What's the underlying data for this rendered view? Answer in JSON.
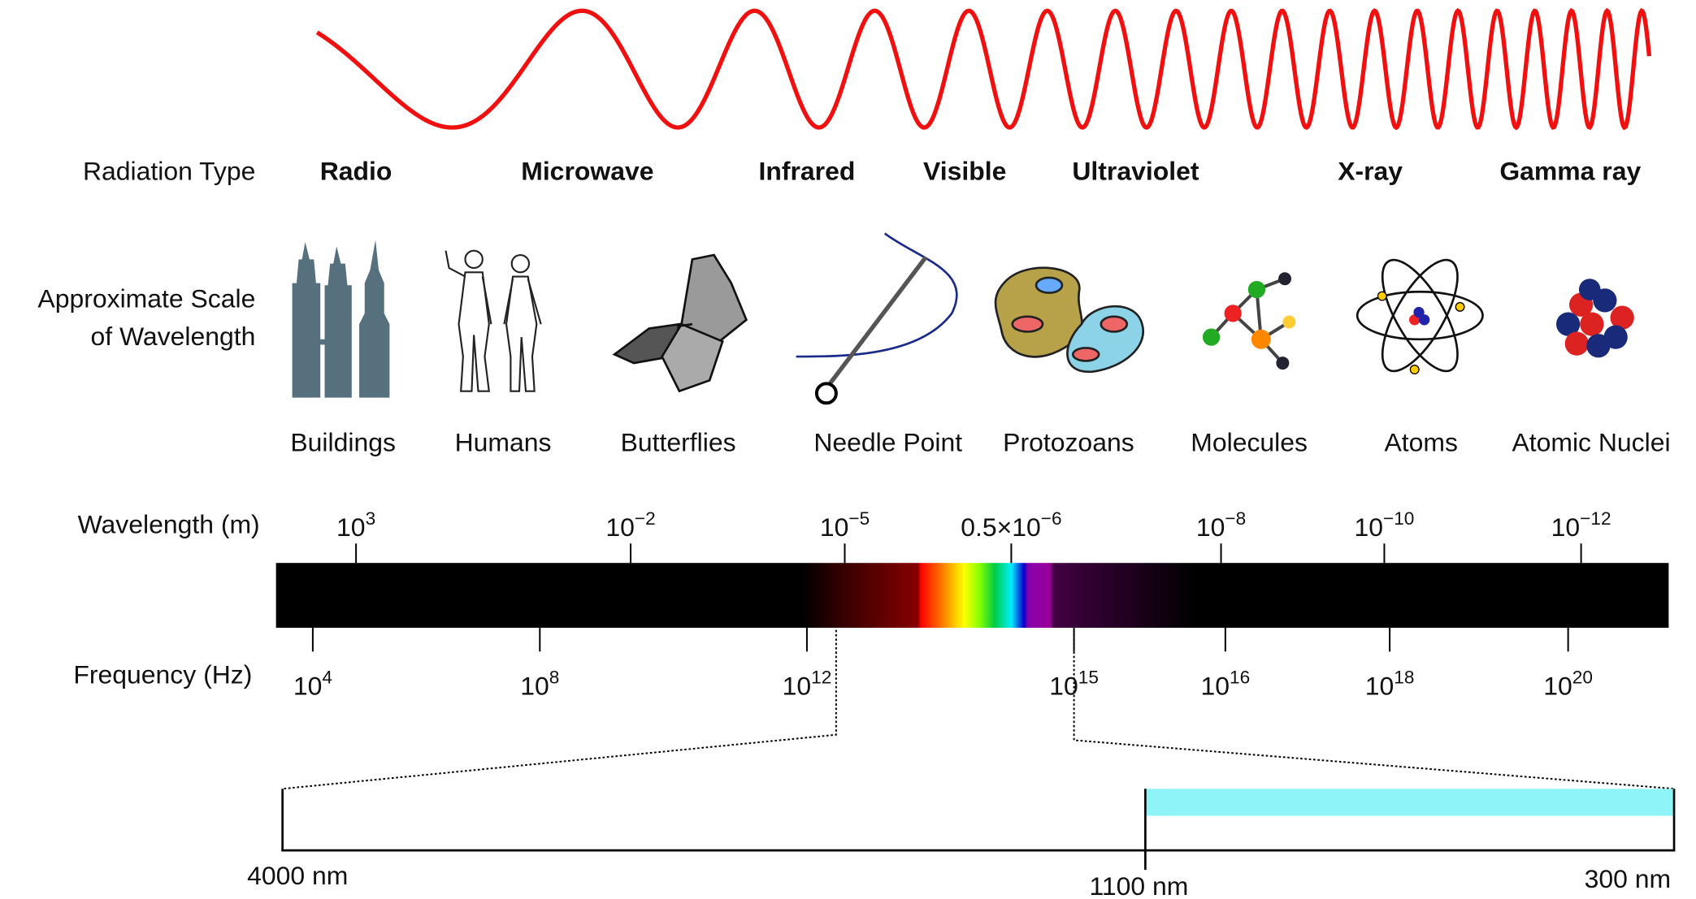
{
  "radiation_type": {
    "label": "Radiation Type",
    "types": [
      "Radio",
      "Microwave",
      "Infrared",
      "Visible",
      "Ultraviolet",
      "X-ray",
      "Gamma ray"
    ]
  },
  "scale": {
    "label_lines": [
      "Approximate Scale",
      "of Wavelength"
    ],
    "items": [
      "Buildings",
      "Humans",
      "Butterflies",
      "Needle Point",
      "Protozoans",
      "Molecules",
      "Atoms",
      "Atomic Nuclei"
    ]
  },
  "wavelength": {
    "label": "Wavelength (m)",
    "ticks": [
      {
        "base": "10",
        "exp": "3"
      },
      {
        "base": "10",
        "exp": "−2"
      },
      {
        "base": "10",
        "exp": "−5"
      },
      {
        "base": "0.5×10",
        "exp": "−6"
      },
      {
        "base": "10",
        "exp": "−8"
      },
      {
        "base": "10",
        "exp": "−10"
      },
      {
        "base": "10",
        "exp": "−12"
      }
    ]
  },
  "frequency": {
    "label": "Frequency (Hz)",
    "ticks": [
      {
        "base": "10",
        "exp": "4"
      },
      {
        "base": "10",
        "exp": "8"
      },
      {
        "base": "10",
        "exp": "12"
      },
      {
        "base": "10",
        "exp": "15"
      },
      {
        "base": "10",
        "exp": "16"
      },
      {
        "base": "10",
        "exp": "18"
      },
      {
        "base": "10",
        "exp": "20"
      }
    ]
  },
  "zoom": {
    "labels": [
      "4000 nm",
      "1100 nm",
      "300 nm"
    ]
  }
}
